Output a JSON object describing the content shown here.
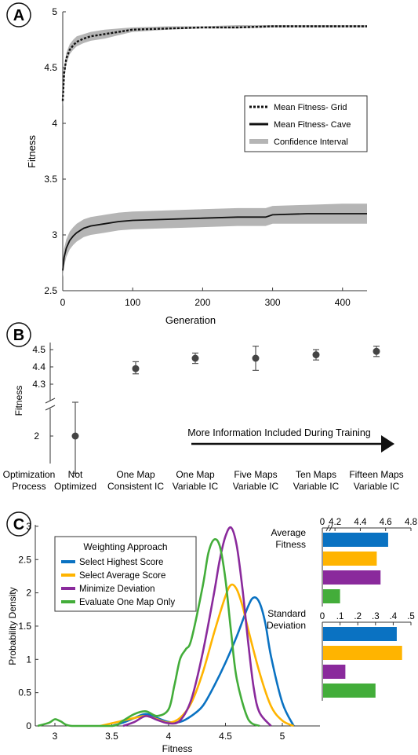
{
  "panels": {
    "a": {
      "letter": "A"
    },
    "b": {
      "letter": "B"
    },
    "c": {
      "letter": "C"
    }
  },
  "chart_data": [
    {
      "id": "A",
      "type": "line",
      "xlabel": "Generation",
      "ylabel": "Fitness",
      "xlim": [
        0,
        435
      ],
      "ylim": [
        2.5,
        5
      ],
      "xticks": [
        0,
        100,
        200,
        300,
        400
      ],
      "yticks": [
        2.5,
        3,
        3.5,
        4,
        4.5,
        5
      ],
      "legend_position": "center-right",
      "series": [
        {
          "name": "Mean Fitness- Grid",
          "style": "dotted",
          "x": [
            0,
            2,
            5,
            10,
            15,
            20,
            30,
            40,
            60,
            80,
            100,
            150,
            200,
            250,
            300,
            350,
            400,
            435
          ],
          "y": [
            4.2,
            4.45,
            4.58,
            4.66,
            4.7,
            4.73,
            4.76,
            4.78,
            4.8,
            4.82,
            4.84,
            4.85,
            4.86,
            4.86,
            4.87,
            4.87,
            4.87,
            4.87
          ],
          "ci_lower": [
            4.15,
            4.4,
            4.53,
            4.62,
            4.66,
            4.69,
            4.72,
            4.74,
            4.76,
            4.79,
            4.82,
            4.84,
            4.85,
            4.85,
            4.86,
            4.86,
            4.86,
            4.86
          ],
          "ci_upper": [
            4.25,
            4.5,
            4.63,
            4.71,
            4.75,
            4.78,
            4.8,
            4.82,
            4.84,
            4.85,
            4.86,
            4.87,
            4.87,
            4.88,
            4.88,
            4.88,
            4.88,
            4.88
          ]
        },
        {
          "name": "Mean Fitness- Cave",
          "style": "solid",
          "x": [
            0,
            2,
            5,
            10,
            15,
            20,
            30,
            40,
            60,
            80,
            100,
            150,
            200,
            250,
            290,
            300,
            350,
            400,
            435
          ],
          "y": [
            2.68,
            2.8,
            2.88,
            2.95,
            2.99,
            3.02,
            3.06,
            3.08,
            3.1,
            3.12,
            3.13,
            3.14,
            3.15,
            3.16,
            3.16,
            3.18,
            3.19,
            3.19,
            3.19
          ],
          "ci_lower": [
            2.62,
            2.72,
            2.8,
            2.87,
            2.91,
            2.94,
            2.98,
            3.0,
            3.02,
            3.04,
            3.05,
            3.06,
            3.07,
            3.08,
            3.08,
            3.1,
            3.1,
            3.1,
            3.1
          ],
          "ci_upper": [
            2.74,
            2.88,
            2.96,
            3.03,
            3.07,
            3.1,
            3.14,
            3.16,
            3.18,
            3.2,
            3.21,
            3.22,
            3.23,
            3.24,
            3.24,
            3.26,
            3.27,
            3.28,
            3.28
          ]
        }
      ],
      "band_legend": "Confidence Interval"
    },
    {
      "id": "B",
      "type": "scatter",
      "ylabel": "Fitness",
      "axis_break": true,
      "yticks_upper": [
        4.3,
        4.4,
        4.5
      ],
      "yticks_lower": [
        2
      ],
      "category_header": [
        "Optimization",
        "Process"
      ],
      "categories": [
        [
          "Not",
          "Optimized"
        ],
        [
          "One Map",
          "Consistent IC"
        ],
        [
          "One Map",
          "Variable IC"
        ],
        [
          "Five Maps",
          "Variable IC"
        ],
        [
          "Ten Maps",
          "Variable IC"
        ],
        [
          "Fifteen Maps",
          "Variable IC"
        ]
      ],
      "values": [
        2.0,
        4.39,
        4.45,
        4.45,
        4.47,
        4.49
      ],
      "err_lo": [
        1.45,
        4.36,
        4.42,
        4.38,
        4.44,
        4.46
      ],
      "err_hi": [
        2.5,
        4.43,
        4.48,
        4.52,
        4.5,
        4.52
      ],
      "annotation": "More Information Included During Training"
    },
    {
      "id": "C",
      "type": "line",
      "xlabel": "Fitness",
      "ylabel": "Probability Density",
      "xlim": [
        2.8,
        5.35
      ],
      "ylim": [
        0,
        3
      ],
      "xticks": [
        3,
        3.5,
        4,
        4.5,
        5
      ],
      "yticks": [
        0,
        0.5,
        1,
        1.5,
        2,
        2.5,
        3
      ],
      "legend_title": "Weighting Approach",
      "legend_position": "top-left",
      "series": [
        {
          "name": "Select Highest Score",
          "color": "#0a72c2",
          "x": [
            3.5,
            3.6,
            3.7,
            3.8,
            3.9,
            4.0,
            4.1,
            4.2,
            4.3,
            4.4,
            4.5,
            4.6,
            4.7,
            4.75,
            4.8,
            4.85,
            4.9,
            5.0,
            5.1
          ],
          "y": [
            0.0,
            0.05,
            0.12,
            0.18,
            0.12,
            0.06,
            0.06,
            0.15,
            0.3,
            0.6,
            0.95,
            1.35,
            1.8,
            1.93,
            1.85,
            1.55,
            1.05,
            0.35,
            0.0
          ]
        },
        {
          "name": "Select Average Score",
          "color": "#ffb400",
          "x": [
            3.4,
            3.5,
            3.6,
            3.7,
            3.8,
            3.9,
            4.0,
            4.1,
            4.2,
            4.3,
            4.4,
            4.5,
            4.55,
            4.6,
            4.65,
            4.7,
            4.8,
            4.9,
            5.0,
            5.1
          ],
          "y": [
            0.0,
            0.04,
            0.08,
            0.12,
            0.15,
            0.1,
            0.05,
            0.12,
            0.35,
            0.8,
            1.4,
            1.95,
            2.12,
            2.05,
            1.8,
            1.45,
            0.8,
            0.3,
            0.08,
            0.0
          ]
        },
        {
          "name": "Minimize Deviation",
          "color": "#8a2a9c",
          "x": [
            3.6,
            3.7,
            3.8,
            3.9,
            4.0,
            4.1,
            4.2,
            4.3,
            4.4,
            4.45,
            4.5,
            4.55,
            4.6,
            4.65,
            4.7,
            4.75,
            4.8,
            4.9
          ],
          "y": [
            0.0,
            0.06,
            0.15,
            0.09,
            0.04,
            0.08,
            0.4,
            1.1,
            2.0,
            2.5,
            2.85,
            2.98,
            2.7,
            2.05,
            1.25,
            0.55,
            0.2,
            0.0
          ]
        },
        {
          "name": "Evaluate One Map Only",
          "color": "#43ad3a",
          "x": [
            2.85,
            2.95,
            3.0,
            3.05,
            3.15,
            3.5,
            3.6,
            3.7,
            3.8,
            3.9,
            4.0,
            4.05,
            4.1,
            4.15,
            4.2,
            4.3,
            4.35,
            4.4,
            4.45,
            4.5,
            4.55,
            4.6,
            4.7,
            4.8
          ],
          "y": [
            0.0,
            0.05,
            0.1,
            0.07,
            0.0,
            0.0,
            0.08,
            0.18,
            0.22,
            0.15,
            0.25,
            0.6,
            1.0,
            1.15,
            1.3,
            2.1,
            2.6,
            2.8,
            2.7,
            2.2,
            1.4,
            0.7,
            0.1,
            0.0
          ]
        }
      ]
    },
    {
      "id": "C-inset-top",
      "type": "bar",
      "orientation": "horizontal",
      "title": [
        "Average",
        "Fitness"
      ],
      "xlim": [
        4.1,
        4.8
      ],
      "xticks": [
        "0",
        "4.2",
        "4.4",
        "4.6",
        "4.8"
      ],
      "axis_break": true,
      "series_colors": [
        "#0a72c2",
        "#ffb400",
        "#8a2a9c",
        "#43ad3a"
      ],
      "values": [
        4.62,
        4.53,
        4.56,
        4.24
      ]
    },
    {
      "id": "C-inset-bottom",
      "type": "bar",
      "orientation": "horizontal",
      "title": [
        "Standard",
        "Deviation"
      ],
      "xlim": [
        0,
        0.5
      ],
      "xticks": [
        "0",
        ".1",
        ".2",
        ".3",
        ".4",
        ".5"
      ],
      "series_colors": [
        "#0a72c2",
        "#ffb400",
        "#8a2a9c",
        "#43ad3a"
      ],
      "values": [
        0.42,
        0.45,
        0.13,
        0.3
      ]
    }
  ]
}
